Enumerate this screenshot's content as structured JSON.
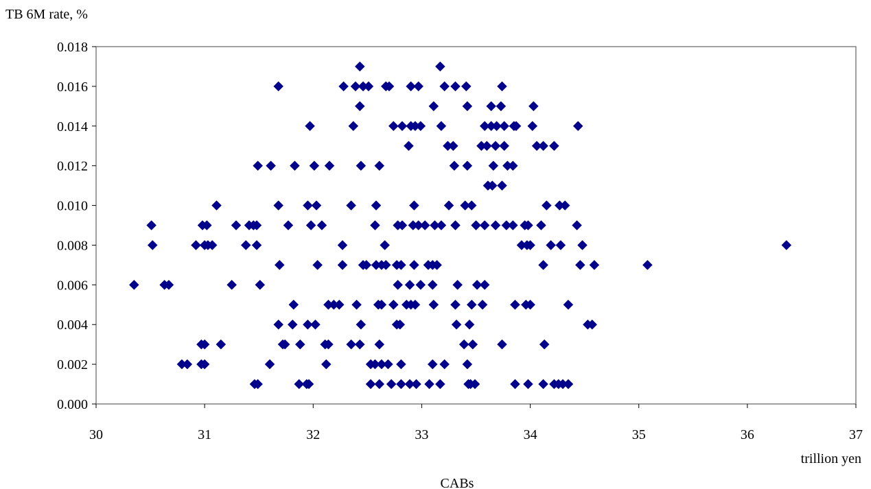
{
  "chart_data": {
    "type": "scatter",
    "title": "",
    "ylabel": "TB 6M rate, %",
    "xunit": "trillion yen",
    "xlabel": "CABs",
    "xlim": [
      30,
      37
    ],
    "ylim": [
      0,
      0.018
    ],
    "xticks": [
      "30",
      "31",
      "32",
      "33",
      "34",
      "35",
      "36",
      "37"
    ],
    "yticks": [
      "0.000",
      "0.002",
      "0.004",
      "0.006",
      "0.008",
      "0.010",
      "0.012",
      "0.014",
      "0.016",
      "0.018"
    ],
    "grid": false,
    "legend": "none",
    "marker": "diamond",
    "marker_color": "#00008B",
    "points": [
      [
        32.43,
        0.017
      ],
      [
        33.17,
        0.017
      ],
      [
        31.68,
        0.016
      ],
      [
        32.28,
        0.016
      ],
      [
        32.39,
        0.016
      ],
      [
        32.46,
        0.016
      ],
      [
        32.51,
        0.016
      ],
      [
        32.67,
        0.016
      ],
      [
        32.7,
        0.016
      ],
      [
        32.9,
        0.016
      ],
      [
        32.97,
        0.016
      ],
      [
        33.21,
        0.016
      ],
      [
        33.31,
        0.016
      ],
      [
        33.41,
        0.016
      ],
      [
        33.74,
        0.016
      ],
      [
        32.43,
        0.015
      ],
      [
        33.11,
        0.015
      ],
      [
        33.42,
        0.015
      ],
      [
        33.64,
        0.015
      ],
      [
        33.73,
        0.015
      ],
      [
        34.03,
        0.015
      ],
      [
        31.97,
        0.014
      ],
      [
        32.37,
        0.014
      ],
      [
        32.74,
        0.014
      ],
      [
        32.82,
        0.014
      ],
      [
        32.9,
        0.014
      ],
      [
        32.94,
        0.014
      ],
      [
        32.99,
        0.014
      ],
      [
        33.18,
        0.014
      ],
      [
        33.58,
        0.014
      ],
      [
        33.64,
        0.014
      ],
      [
        33.69,
        0.014
      ],
      [
        33.76,
        0.014
      ],
      [
        33.85,
        0.014
      ],
      [
        33.87,
        0.014
      ],
      [
        34.02,
        0.014
      ],
      [
        34.44,
        0.014
      ],
      [
        32.88,
        0.013
      ],
      [
        33.24,
        0.013
      ],
      [
        33.29,
        0.013
      ],
      [
        33.55,
        0.013
      ],
      [
        33.6,
        0.013
      ],
      [
        33.68,
        0.013
      ],
      [
        33.76,
        0.013
      ],
      [
        34.06,
        0.013
      ],
      [
        34.12,
        0.013
      ],
      [
        34.22,
        0.013
      ],
      [
        31.49,
        0.012
      ],
      [
        31.61,
        0.012
      ],
      [
        31.83,
        0.012
      ],
      [
        32.01,
        0.012
      ],
      [
        32.15,
        0.012
      ],
      [
        32.44,
        0.012
      ],
      [
        32.61,
        0.012
      ],
      [
        33.3,
        0.012
      ],
      [
        33.42,
        0.012
      ],
      [
        33.66,
        0.012
      ],
      [
        33.79,
        0.012
      ],
      [
        33.84,
        0.012
      ],
      [
        33.61,
        0.011
      ],
      [
        33.65,
        0.011
      ],
      [
        33.74,
        0.011
      ],
      [
        31.11,
        0.01
      ],
      [
        31.68,
        0.01
      ],
      [
        31.95,
        0.01
      ],
      [
        32.03,
        0.01
      ],
      [
        32.35,
        0.01
      ],
      [
        32.58,
        0.01
      ],
      [
        32.93,
        0.01
      ],
      [
        33.25,
        0.01
      ],
      [
        33.4,
        0.01
      ],
      [
        33.46,
        0.01
      ],
      [
        34.15,
        0.01
      ],
      [
        34.27,
        0.01
      ],
      [
        34.32,
        0.01
      ],
      [
        30.51,
        0.009
      ],
      [
        30.98,
        0.009
      ],
      [
        31.02,
        0.009
      ],
      [
        31.29,
        0.009
      ],
      [
        31.41,
        0.009
      ],
      [
        31.45,
        0.009
      ],
      [
        31.48,
        0.009
      ],
      [
        31.77,
        0.009
      ],
      [
        31.98,
        0.009
      ],
      [
        32.08,
        0.009
      ],
      [
        32.57,
        0.009
      ],
      [
        32.78,
        0.009
      ],
      [
        32.82,
        0.009
      ],
      [
        32.92,
        0.009
      ],
      [
        32.97,
        0.009
      ],
      [
        33.03,
        0.009
      ],
      [
        33.12,
        0.009
      ],
      [
        33.18,
        0.009
      ],
      [
        33.31,
        0.009
      ],
      [
        33.5,
        0.009
      ],
      [
        33.58,
        0.009
      ],
      [
        33.68,
        0.009
      ],
      [
        33.78,
        0.009
      ],
      [
        33.84,
        0.009
      ],
      [
        33.95,
        0.009
      ],
      [
        33.98,
        0.009
      ],
      [
        34.1,
        0.009
      ],
      [
        34.43,
        0.009
      ],
      [
        30.52,
        0.008
      ],
      [
        30.92,
        0.008
      ],
      [
        31.0,
        0.008
      ],
      [
        31.03,
        0.008
      ],
      [
        31.07,
        0.008
      ],
      [
        31.38,
        0.008
      ],
      [
        31.48,
        0.008
      ],
      [
        32.27,
        0.008
      ],
      [
        32.66,
        0.008
      ],
      [
        33.92,
        0.008
      ],
      [
        33.97,
        0.008
      ],
      [
        34.0,
        0.008
      ],
      [
        34.19,
        0.008
      ],
      [
        34.28,
        0.008
      ],
      [
        34.48,
        0.008
      ],
      [
        36.36,
        0.008
      ],
      [
        31.69,
        0.007
      ],
      [
        32.04,
        0.007
      ],
      [
        32.27,
        0.007
      ],
      [
        32.46,
        0.007
      ],
      [
        32.49,
        0.007
      ],
      [
        32.58,
        0.007
      ],
      [
        32.63,
        0.007
      ],
      [
        32.67,
        0.007
      ],
      [
        32.77,
        0.007
      ],
      [
        32.81,
        0.007
      ],
      [
        32.93,
        0.007
      ],
      [
        33.06,
        0.007
      ],
      [
        33.1,
        0.007
      ],
      [
        33.14,
        0.007
      ],
      [
        34.12,
        0.007
      ],
      [
        34.46,
        0.007
      ],
      [
        34.59,
        0.007
      ],
      [
        35.08,
        0.007
      ],
      [
        30.35,
        0.006
      ],
      [
        30.63,
        0.006
      ],
      [
        30.67,
        0.006
      ],
      [
        31.25,
        0.006
      ],
      [
        31.51,
        0.006
      ],
      [
        32.78,
        0.006
      ],
      [
        32.89,
        0.006
      ],
      [
        32.99,
        0.006
      ],
      [
        33.1,
        0.006
      ],
      [
        33.33,
        0.006
      ],
      [
        33.51,
        0.006
      ],
      [
        33.58,
        0.006
      ],
      [
        31.82,
        0.005
      ],
      [
        32.14,
        0.005
      ],
      [
        32.19,
        0.005
      ],
      [
        32.24,
        0.005
      ],
      [
        32.4,
        0.005
      ],
      [
        32.6,
        0.005
      ],
      [
        32.63,
        0.005
      ],
      [
        32.74,
        0.005
      ],
      [
        32.86,
        0.005
      ],
      [
        32.9,
        0.005
      ],
      [
        32.94,
        0.005
      ],
      [
        33.11,
        0.005
      ],
      [
        33.31,
        0.005
      ],
      [
        33.46,
        0.005
      ],
      [
        33.56,
        0.005
      ],
      [
        33.86,
        0.005
      ],
      [
        33.96,
        0.005
      ],
      [
        34.0,
        0.005
      ],
      [
        34.35,
        0.005
      ],
      [
        31.68,
        0.004
      ],
      [
        31.81,
        0.004
      ],
      [
        31.95,
        0.004
      ],
      [
        32.02,
        0.004
      ],
      [
        32.44,
        0.004
      ],
      [
        32.77,
        0.004
      ],
      [
        32.8,
        0.004
      ],
      [
        33.32,
        0.004
      ],
      [
        33.44,
        0.004
      ],
      [
        34.53,
        0.004
      ],
      [
        34.57,
        0.004
      ],
      [
        30.97,
        0.003
      ],
      [
        31.0,
        0.003
      ],
      [
        31.15,
        0.003
      ],
      [
        31.72,
        0.003
      ],
      [
        31.74,
        0.003
      ],
      [
        31.88,
        0.003
      ],
      [
        32.11,
        0.003
      ],
      [
        32.14,
        0.003
      ],
      [
        32.35,
        0.003
      ],
      [
        32.43,
        0.003
      ],
      [
        32.61,
        0.003
      ],
      [
        33.39,
        0.003
      ],
      [
        33.47,
        0.003
      ],
      [
        33.74,
        0.003
      ],
      [
        34.13,
        0.003
      ],
      [
        30.79,
        0.002
      ],
      [
        30.84,
        0.002
      ],
      [
        30.97,
        0.002
      ],
      [
        31.0,
        0.002
      ],
      [
        31.6,
        0.002
      ],
      [
        32.12,
        0.002
      ],
      [
        32.53,
        0.002
      ],
      [
        32.57,
        0.002
      ],
      [
        32.63,
        0.002
      ],
      [
        32.69,
        0.002
      ],
      [
        32.81,
        0.002
      ],
      [
        33.1,
        0.002
      ],
      [
        33.21,
        0.002
      ],
      [
        33.42,
        0.002
      ],
      [
        31.46,
        0.001
      ],
      [
        31.49,
        0.001
      ],
      [
        31.87,
        0.001
      ],
      [
        31.94,
        0.001
      ],
      [
        31.96,
        0.001
      ],
      [
        32.53,
        0.001
      ],
      [
        32.61,
        0.001
      ],
      [
        32.72,
        0.001
      ],
      [
        32.81,
        0.001
      ],
      [
        32.89,
        0.001
      ],
      [
        32.95,
        0.001
      ],
      [
        33.07,
        0.001
      ],
      [
        33.17,
        0.001
      ],
      [
        33.43,
        0.001
      ],
      [
        33.45,
        0.001
      ],
      [
        33.49,
        0.001
      ],
      [
        33.86,
        0.001
      ],
      [
        33.98,
        0.001
      ],
      [
        34.12,
        0.001
      ],
      [
        34.22,
        0.001
      ],
      [
        34.26,
        0.001
      ],
      [
        34.3,
        0.001
      ],
      [
        34.35,
        0.001
      ]
    ]
  }
}
